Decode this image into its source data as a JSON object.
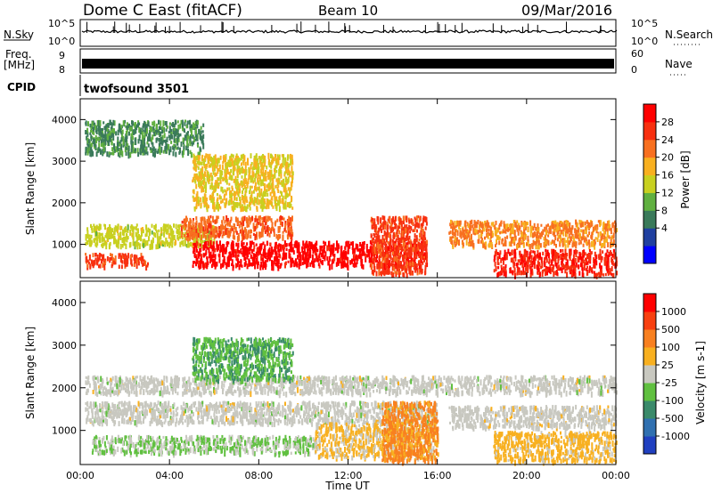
{
  "header": {
    "title": "Dome C East (fitACF)",
    "beam": "Beam 10",
    "date": "09/Mar/2016"
  },
  "strips": {
    "nsky_label": "N.Sky",
    "nsky_ticks": [
      "10^5",
      "10^0"
    ],
    "nsearch_label": "N.Search",
    "nsearch_ticks": [
      "10^5",
      "10^0"
    ],
    "freq_label": "Freq.",
    "freq_unit": "[MHz]",
    "freq_ticks": [
      "9",
      "8"
    ],
    "nave_label": "Nave",
    "nave_ticks": [
      "60",
      "0"
    ],
    "cpid_label": "CPID",
    "cpid_value": "twofsound 3501"
  },
  "panels": {
    "ylabel": "Slant Range [km]",
    "yticks": [
      "4000",
      "3000",
      "2000",
      "1000"
    ],
    "xlabel": "Time UT",
    "xticks": [
      "00:00",
      "04:00",
      "08:00",
      "12:00",
      "16:00",
      "20:00",
      "00:00"
    ]
  },
  "power_scale": {
    "label": "Power [dB]",
    "ticks": [
      "28",
      "24",
      "20",
      "16",
      "12",
      "8",
      "4"
    ],
    "colors": [
      "#0000ff",
      "#2040a0",
      "#3a7a5a",
      "#60b040",
      "#c8d020",
      "#f8b020",
      "#f87020",
      "#f83010",
      "#ff0000"
    ]
  },
  "velocity_scale": {
    "label": "Velocity [m s-1]",
    "ticks": [
      "1000",
      "500",
      "100",
      "25",
      "-25",
      "-100",
      "-500",
      "-1000"
    ],
    "colors": [
      "#2040c0",
      "#3070b0",
      "#3a8a6a",
      "#60c040",
      "#c8c8c0",
      "#f8b020",
      "#f88020",
      "#f84010",
      "#ff0000"
    ]
  },
  "chart_data": [
    {
      "type": "heatmap",
      "title": "Power",
      "xlabel": "Time UT",
      "ylabel": "Slant Range [km]",
      "xlim": [
        "00:00",
        "24:00"
      ],
      "ylim": [
        200,
        4500
      ],
      "colorbar": {
        "label": "Power [dB]",
        "range": [
          0,
          32
        ]
      },
      "echo_regions": [
        {
          "t_start": 0.2,
          "t_end": 3.0,
          "range_min": 500,
          "range_max": 800,
          "value": 26
        },
        {
          "t_start": 0.2,
          "t_end": 6.0,
          "range_min": 1000,
          "range_max": 1500,
          "value": 16
        },
        {
          "t_start": 4.5,
          "t_end": 9.5,
          "range_min": 1200,
          "range_max": 1700,
          "value": 24
        },
        {
          "t_start": 5.0,
          "t_end": 15.5,
          "range_min": 500,
          "range_max": 1100,
          "value": 30
        },
        {
          "t_start": 13.0,
          "t_end": 15.5,
          "range_min": 300,
          "range_max": 1700,
          "value": 26
        },
        {
          "t_start": 16.5,
          "t_end": 24.0,
          "range_min": 1000,
          "range_max": 1600,
          "value": 22
        },
        {
          "t_start": 18.5,
          "t_end": 24.0,
          "range_min": 300,
          "range_max": 900,
          "value": 28
        },
        {
          "t_start": 0.2,
          "t_end": 5.5,
          "range_min": 3200,
          "range_max": 4000,
          "value": 10
        },
        {
          "t_start": 5.0,
          "t_end": 9.5,
          "range_min": 1900,
          "range_max": 3200,
          "value": 18
        }
      ]
    },
    {
      "type": "heatmap",
      "title": "Velocity",
      "xlabel": "Time UT",
      "ylabel": "Slant Range [km]",
      "xlim": [
        "00:00",
        "24:00"
      ],
      "ylim": [
        200,
        4500
      ],
      "colorbar": {
        "label": "Velocity [m s-1]",
        "range": [
          -1000,
          1000
        ]
      },
      "echo_regions": [
        {
          "t_start": 0.5,
          "t_end": 10.5,
          "range_min": 500,
          "range_max": 900,
          "value": -120
        },
        {
          "t_start": 0.2,
          "t_end": 16.0,
          "range_min": 1200,
          "range_max": 1700,
          "value": 0
        },
        {
          "t_start": 10.5,
          "t_end": 16.0,
          "range_min": 400,
          "range_max": 1200,
          "value": 150
        },
        {
          "t_start": 13.5,
          "t_end": 16.0,
          "range_min": 300,
          "range_max": 1700,
          "value": 400
        },
        {
          "t_start": 16.5,
          "t_end": 24.0,
          "range_min": 1100,
          "range_max": 1600,
          "value": 10
        },
        {
          "t_start": 18.5,
          "t_end": 24.0,
          "range_min": 300,
          "range_max": 1000,
          "value": 200
        },
        {
          "t_start": 0.2,
          "t_end": 24.0,
          "range_min": 1900,
          "range_max": 2300,
          "value": 0
        },
        {
          "t_start": 5.0,
          "t_end": 9.5,
          "range_min": 2200,
          "range_max": 3200,
          "value": -300
        }
      ]
    }
  ]
}
